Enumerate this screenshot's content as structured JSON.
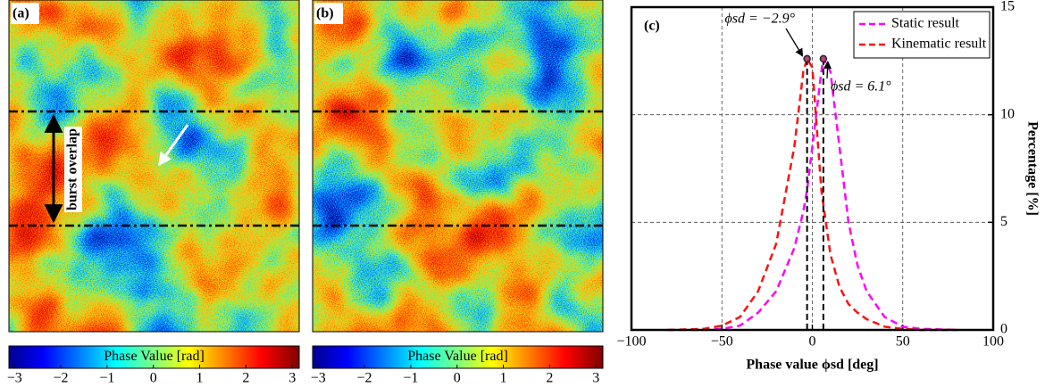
{
  "chart_data": [
    {
      "type": "image",
      "panel_label": "(a)",
      "annotation": "burst overlap",
      "colorbar": {
        "label": "Phase Value [rad]",
        "lim": [
          -3.12,
          3.15
        ],
        "ticks": [
          {
            "value": -3,
            "label": "−3"
          },
          {
            "value": -2,
            "label": "−2"
          },
          {
            "value": -1,
            "label": "−1"
          },
          0,
          1,
          2,
          3
        ]
      }
    },
    {
      "type": "image",
      "panel_label": "(b)",
      "colorbar": {
        "label": "Phase Value [rad]",
        "lim": [
          -3.12,
          3.15
        ],
        "ticks": [
          {
            "value": -3,
            "label": "−3"
          },
          {
            "value": -2,
            "label": "−2"
          },
          {
            "value": -1,
            "label": "−1"
          },
          0,
          1,
          2,
          3
        ]
      }
    },
    {
      "type": "line",
      "panel_label": "(c)",
      "xlabel": "Phase value ϕsd [deg]",
      "ylabel": "Percentage [%]",
      "x": [
        -80,
        -60,
        -50,
        -40,
        -30,
        -20,
        -10,
        -5,
        -2.9,
        0,
        5,
        6.1,
        10,
        15,
        20,
        25,
        30,
        40,
        50,
        60,
        80
      ],
      "series": [
        {
          "name": "Static result",
          "color": "#ff00ff",
          "values": [
            0,
            0,
            0.05,
            0.2,
            0.8,
            1.8,
            3.8,
            5.5,
            6.5,
            8.5,
            12,
            12.6,
            12,
            8.5,
            5,
            3,
            1.8,
            0.6,
            0.15,
            0.05,
            0
          ]
        },
        {
          "name": "Kinematic result",
          "color": "#ff1010",
          "values": [
            0,
            0.05,
            0.2,
            0.6,
            1.8,
            4,
            8.5,
            12,
            12.6,
            12.2,
            6.5,
            5.8,
            3.5,
            2,
            1.2,
            0.8,
            0.5,
            0.15,
            0.05,
            0,
            0
          ]
        }
      ],
      "peaks": [
        {
          "x": -2.9,
          "y": 12.6,
          "label": "ϕsd = −2.9°"
        },
        {
          "x": 6.1,
          "y": 12.6,
          "label": "ϕsd = 6.1°"
        }
      ],
      "xlim": [
        -100,
        100
      ],
      "ylim": [
        0,
        15
      ],
      "xticks": [
        {
          "value": -100,
          "label": "−100"
        },
        {
          "value": -50,
          "label": "−50"
        },
        0,
        50,
        100
      ],
      "yticks": [
        0,
        5,
        10,
        15
      ],
      "grid": true,
      "legend": "upper right"
    }
  ]
}
